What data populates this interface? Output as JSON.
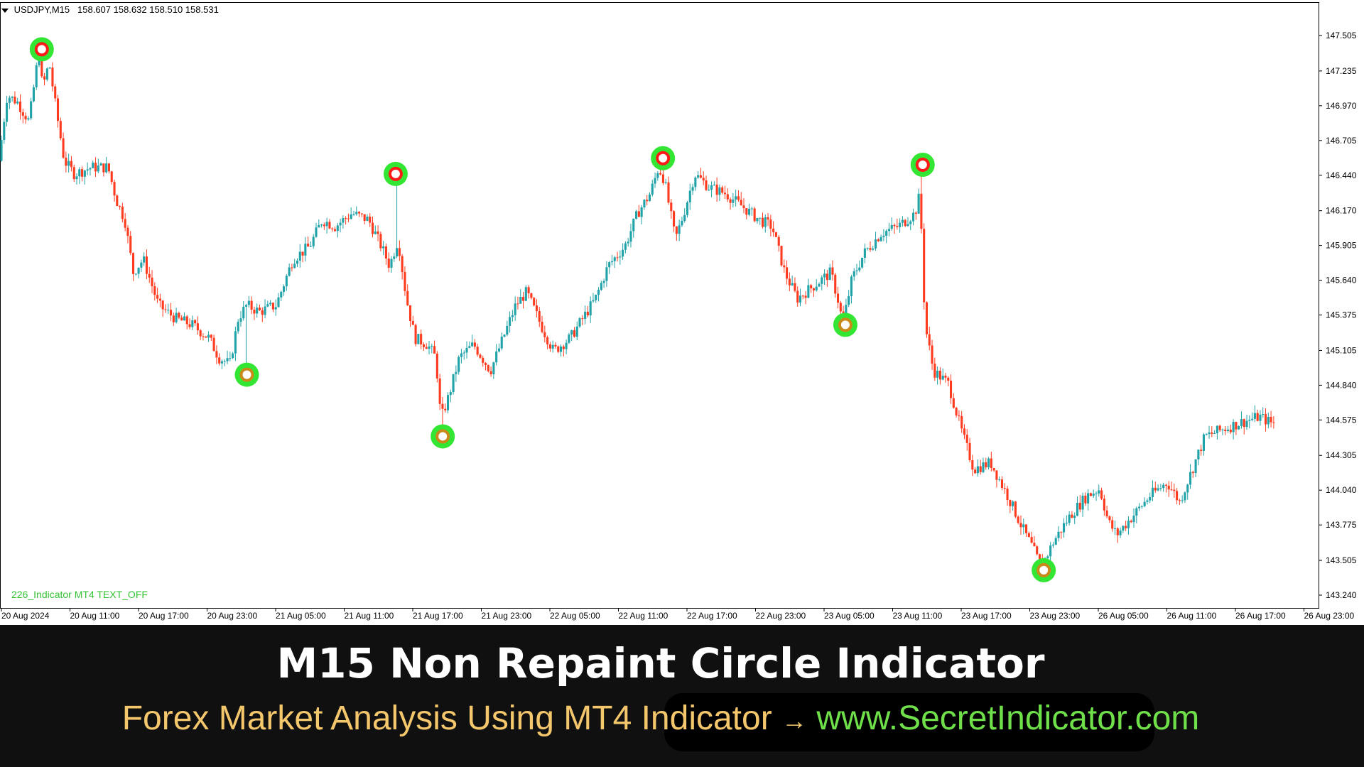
{
  "header": {
    "symbol": "USDJPY,M15",
    "ohlc": "158.607 158.632 158.510 158.531"
  },
  "indicator_label": "226_Indicator MT4 TEXT_OFF",
  "colors": {
    "bull_candle": "#1fa2a8",
    "bear_candle": "#ff3b1f",
    "signal_ring": "#33e633",
    "high_signal_dot": "#ff1a1a",
    "low_signal_dot": "#c98a1a",
    "banner_bg": "#101010"
  },
  "chart_data": {
    "type": "candlestick",
    "y_axis": {
      "ticks": [
        "147.505",
        "147.235",
        "146.970",
        "146.705",
        "146.440",
        "146.170",
        "145.905",
        "145.640",
        "145.375",
        "145.105",
        "144.840",
        "144.575",
        "144.305",
        "144.040",
        "143.775",
        "143.505",
        "143.240"
      ],
      "range": [
        143.15,
        147.7
      ]
    },
    "x_axis": {
      "ticks": [
        "20 Aug 2024",
        "20 Aug 11:00",
        "20 Aug 17:00",
        "20 Aug 23:00",
        "21 Aug 05:00",
        "21 Aug 11:00",
        "21 Aug 17:00",
        "21 Aug 23:00",
        "22 Aug 05:00",
        "22 Aug 11:00",
        "22 Aug 17:00",
        "22 Aug 23:00",
        "23 Aug 05:00",
        "23 Aug 11:00",
        "23 Aug 17:00",
        "23 Aug 23:00",
        "26 Aug 05:00",
        "26 Aug 11:00",
        "26 Aug 17:00",
        "26 Aug 23:00"
      ]
    },
    "price_path": [
      [
        0,
        146.55
      ],
      [
        10,
        147.05
      ],
      [
        22,
        147.0
      ],
      [
        36,
        146.85
      ],
      [
        48,
        147.4
      ],
      [
        52,
        147.1
      ],
      [
        60,
        147.3
      ],
      [
        68,
        146.95
      ],
      [
        78,
        146.55
      ],
      [
        90,
        146.45
      ],
      [
        110,
        146.5
      ],
      [
        130,
        146.5
      ],
      [
        140,
        146.25
      ],
      [
        150,
        146.1
      ],
      [
        160,
        145.7
      ],
      [
        172,
        145.8
      ],
      [
        190,
        145.45
      ],
      [
        210,
        145.35
      ],
      [
        230,
        145.3
      ],
      [
        250,
        145.2
      ],
      [
        262,
        145.05
      ],
      [
        275,
        145.0
      ],
      [
        285,
        145.35
      ],
      [
        295,
        145.45
      ],
      [
        310,
        145.4
      ],
      [
        330,
        145.45
      ],
      [
        350,
        145.8
      ],
      [
        370,
        145.9
      ],
      [
        385,
        146.1
      ],
      [
        400,
        146.05
      ],
      [
        420,
        146.15
      ],
      [
        440,
        146.1
      ],
      [
        455,
        145.9
      ],
      [
        465,
        145.75
      ],
      [
        475,
        145.95
      ],
      [
        485,
        145.5
      ],
      [
        495,
        145.2
      ],
      [
        510,
        145.15
      ],
      [
        520,
        145.05
      ],
      [
        526,
        144.58
      ],
      [
        535,
        144.75
      ],
      [
        548,
        145.05
      ],
      [
        565,
        145.15
      ],
      [
        585,
        144.95
      ],
      [
        600,
        145.2
      ],
      [
        615,
        145.45
      ],
      [
        628,
        145.55
      ],
      [
        645,
        145.3
      ],
      [
        660,
        145.1
      ],
      [
        680,
        145.2
      ],
      [
        695,
        145.35
      ],
      [
        710,
        145.5
      ],
      [
        725,
        145.75
      ],
      [
        745,
        145.9
      ],
      [
        760,
        146.15
      ],
      [
        775,
        146.3
      ],
      [
        785,
        146.5
      ],
      [
        792,
        146.4
      ],
      [
        805,
        145.95
      ],
      [
        815,
        146.15
      ],
      [
        828,
        146.45
      ],
      [
        845,
        146.35
      ],
      [
        865,
        146.3
      ],
      [
        885,
        146.2
      ],
      [
        905,
        146.1
      ],
      [
        920,
        146.05
      ],
      [
        935,
        145.7
      ],
      [
        950,
        145.5
      ],
      [
        970,
        145.6
      ],
      [
        990,
        145.7
      ],
      [
        1000,
        145.45
      ],
      [
        1004,
        145.3
      ],
      [
        1015,
        145.65
      ],
      [
        1030,
        145.85
      ],
      [
        1050,
        146.0
      ],
      [
        1070,
        146.05
      ],
      [
        1090,
        146.15
      ],
      [
        1096,
        146.3
      ],
      [
        1102,
        145.3
      ],
      [
        1112,
        144.95
      ],
      [
        1130,
        144.85
      ],
      [
        1145,
        144.5
      ],
      [
        1160,
        144.2
      ],
      [
        1180,
        144.25
      ],
      [
        1200,
        144.0
      ],
      [
        1218,
        143.75
      ],
      [
        1230,
        143.6
      ],
      [
        1240,
        143.45
      ],
      [
        1255,
        143.65
      ],
      [
        1275,
        143.85
      ],
      [
        1295,
        144.0
      ],
      [
        1310,
        144.05
      ],
      [
        1320,
        143.8
      ],
      [
        1330,
        143.7
      ],
      [
        1350,
        143.85
      ],
      [
        1370,
        144.0
      ],
      [
        1390,
        144.1
      ],
      [
        1405,
        143.95
      ],
      [
        1420,
        144.2
      ],
      [
        1435,
        144.45
      ],
      [
        1455,
        144.5
      ],
      [
        1475,
        144.55
      ],
      [
        1500,
        144.6
      ],
      [
        1515,
        144.55
      ]
    ],
    "signals": [
      {
        "type": "high",
        "x": 48,
        "price": 147.4
      },
      {
        "type": "low",
        "x": 292,
        "price": 144.92
      },
      {
        "type": "high",
        "x": 469,
        "price": 146.45
      },
      {
        "type": "low",
        "x": 525,
        "price": 144.45
      },
      {
        "type": "high",
        "x": 787,
        "price": 146.57
      },
      {
        "type": "low",
        "x": 1004,
        "price": 145.3
      },
      {
        "type": "high",
        "x": 1096,
        "price": 146.52
      },
      {
        "type": "low",
        "x": 1240,
        "price": 143.43
      }
    ]
  },
  "banner": {
    "title": "M15 Non Repaint Circle Indicator",
    "subtitle_left": "Forex Market Analysis Using MT4 Indicator",
    "subtitle_arrow": "→",
    "subtitle_right": "www.SecretIndicator.com"
  }
}
